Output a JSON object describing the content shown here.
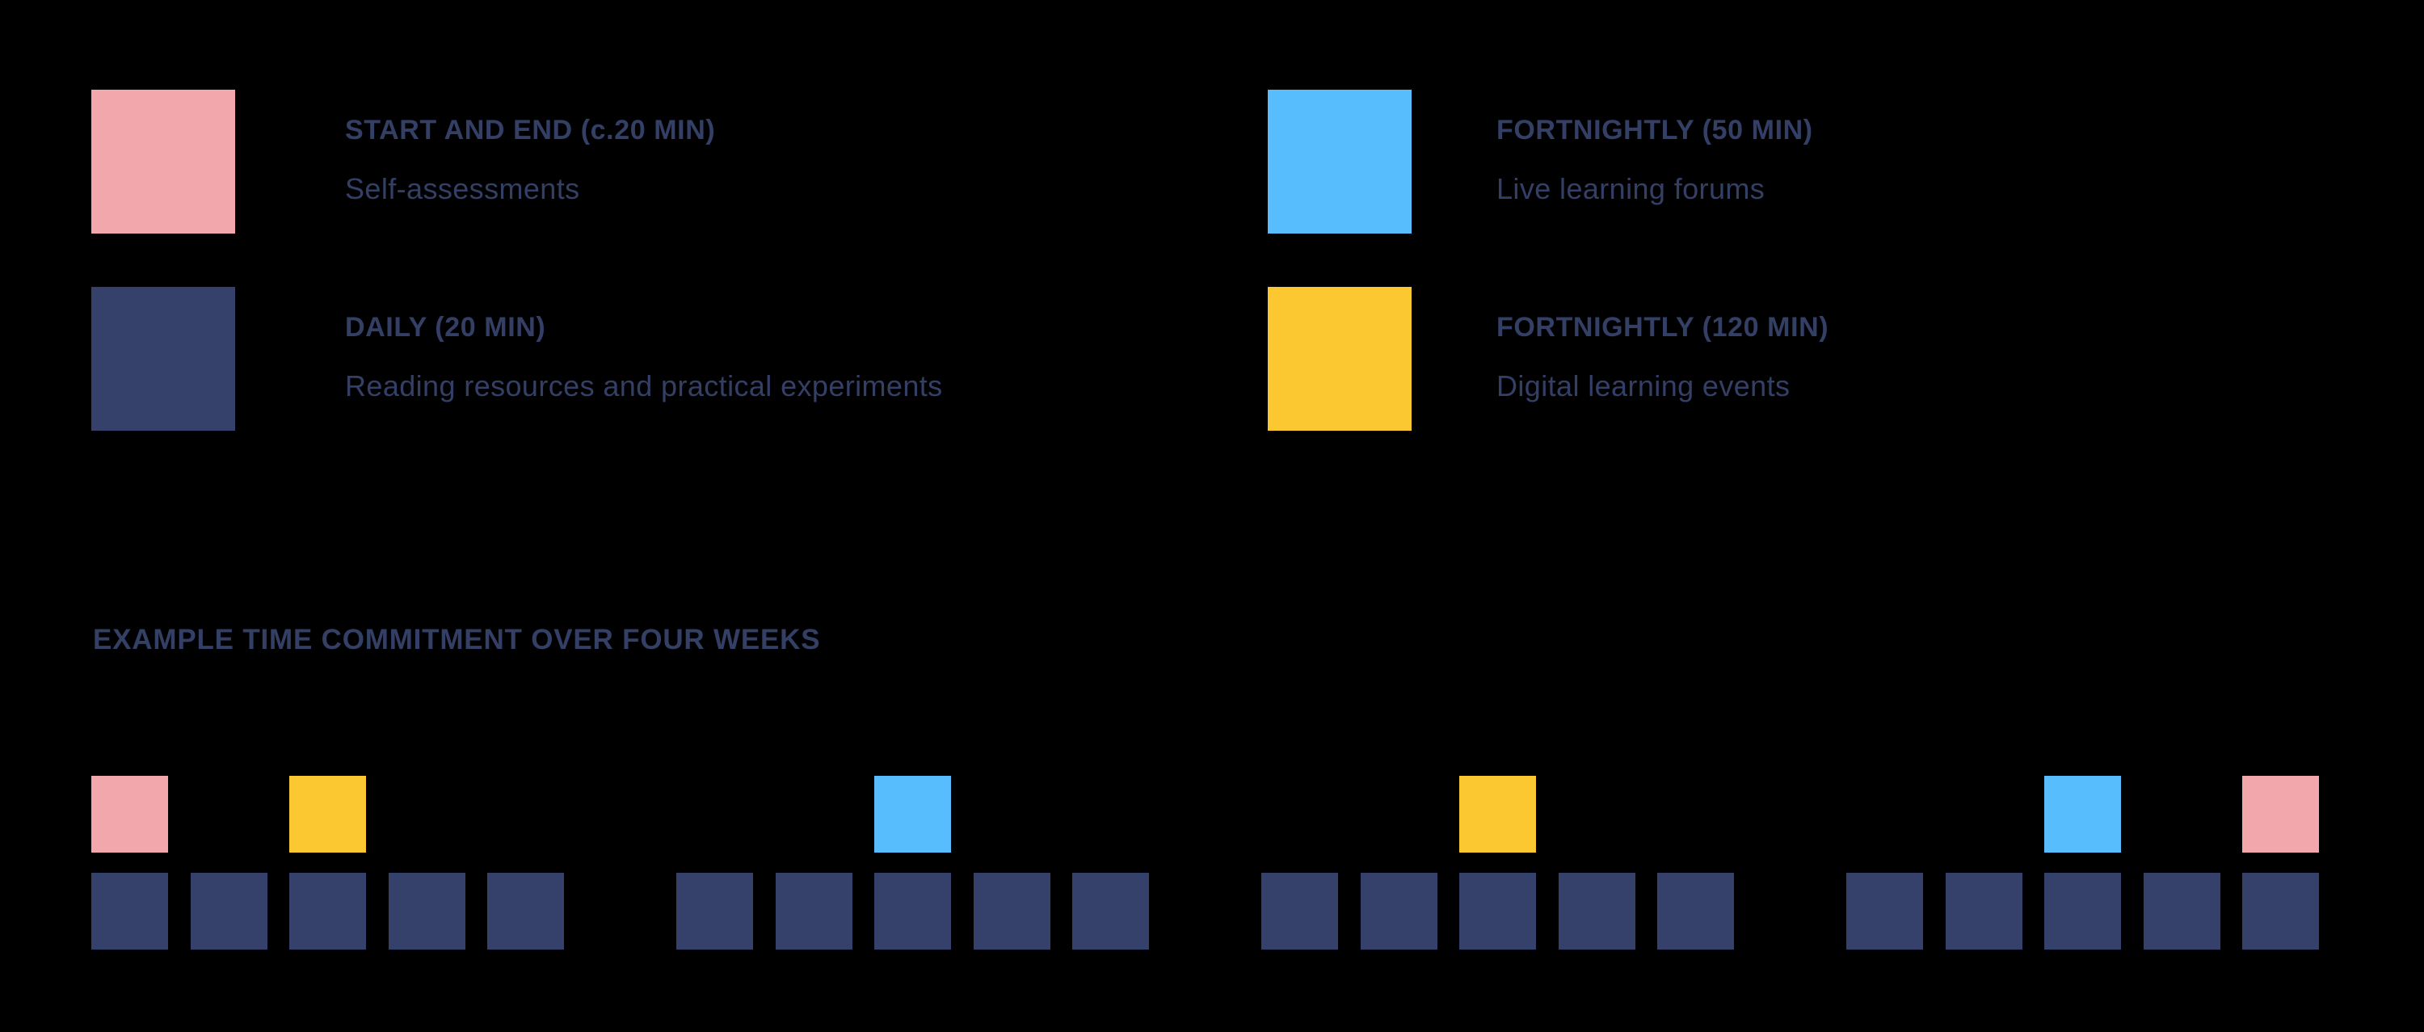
{
  "colors": {
    "background": "#000000",
    "pink": "#F2A7AC",
    "navy": "#35416A",
    "blue": "#57BDFD",
    "yellow": "#FBC831",
    "text": "#343F66"
  },
  "legend": {
    "items": [
      {
        "id": "start-end",
        "color": "pink",
        "title": "START AND END (c.20 MIN)",
        "description": "Self-assessments"
      },
      {
        "id": "daily",
        "color": "navy",
        "title": "DAILY (20 MIN)",
        "description": "Reading resources and practical experiments"
      },
      {
        "id": "fortnightly-50",
        "color": "blue",
        "title": "FORTNIGHTLY (50 MIN)",
        "description": "Live learning forums"
      },
      {
        "id": "fortnightly-120",
        "color": "yellow",
        "title": "FORTNIGHTLY (120 MIN)",
        "description": "Digital learning events"
      }
    ]
  },
  "schedule": {
    "heading": "EXAMPLE TIME COMMITMENT OVER FOUR WEEKS",
    "weeks": 4,
    "days_per_week": 5,
    "daily_color": "navy",
    "events": [
      {
        "week": 1,
        "day": 1,
        "color": "pink",
        "type": "self-assessment"
      },
      {
        "week": 1,
        "day": 3,
        "color": "yellow",
        "type": "digital-learning-event"
      },
      {
        "week": 2,
        "day": 3,
        "color": "blue",
        "type": "live-learning-forum"
      },
      {
        "week": 3,
        "day": 3,
        "color": "yellow",
        "type": "digital-learning-event"
      },
      {
        "week": 4,
        "day": 3,
        "color": "blue",
        "type": "live-learning-forum"
      },
      {
        "week": 4,
        "day": 5,
        "color": "pink",
        "type": "self-assessment"
      }
    ]
  }
}
